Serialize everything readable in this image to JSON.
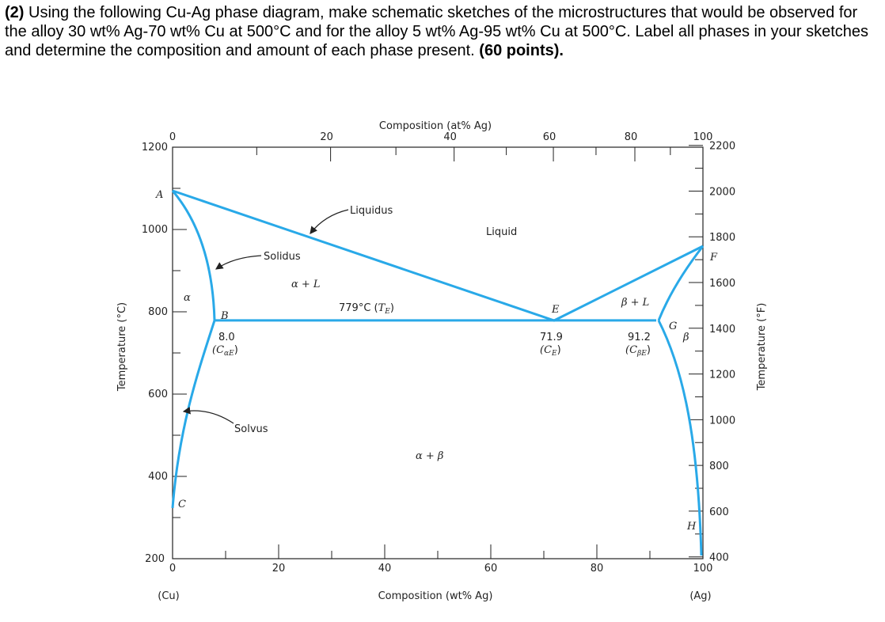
{
  "question": {
    "number": "(2)",
    "text": " Using the following Cu-Ag phase diagram, make schematic sketches of the microstructures that would be observed for the alloy 30 wt% Ag-70 wt% Cu at 500°C and for the alloy 5 wt% Ag-95 wt% Cu at 500°C. Label all phases in your sketches and determine the composition and amount of each phase present. ",
    "points": "(60 points)."
  },
  "diagram": {
    "top_axis": {
      "title": "Composition (at% Ag)",
      "ticks": [
        0,
        20,
        40,
        60,
        80,
        100
      ]
    },
    "bottom_axis": {
      "title": "Composition (wt% Ag)",
      "ticks": [
        0,
        20,
        40,
        60,
        80,
        100
      ],
      "left_end": "(Cu)",
      "right_end": "(Ag)"
    },
    "left_axis": {
      "title": "Temperature (°C)",
      "ticks": [
        200,
        400,
        600,
        800,
        1000,
        1200
      ]
    },
    "right_axis": {
      "title": "Temperature (°F)",
      "ticks": [
        400,
        600,
        800,
        1000,
        1200,
        1400,
        1600,
        1800,
        2000,
        2200
      ]
    },
    "eutectic": {
      "temperature": 779,
      "temperature_label": [
        "779°C (",
        "T",
        "E",
        ")"
      ]
    },
    "c_alpha_e": {
      "value": 8.0,
      "label": "8.0",
      "symbol": [
        "(C",
        "αE",
        ")"
      ]
    },
    "c_e": {
      "value": 71.9,
      "label": "71.9",
      "symbol": [
        "(C",
        "E",
        ")"
      ]
    },
    "c_beta_e": {
      "value": 91.2,
      "label": "91.2",
      "symbol": [
        "(C",
        "βE",
        ")"
      ]
    },
    "regions": {
      "liquid": "Liquid",
      "alpha": "α",
      "alpha_l": "α + L",
      "beta_l": "β + L",
      "beta": "β",
      "alpha_beta": "α + β"
    },
    "curves": {
      "liquidus": "Liquidus",
      "solidus": "Solidus",
      "solvus": "Solvus"
    },
    "points": {
      "a": "A",
      "b": "B",
      "c": "C",
      "e": "E",
      "f": "F",
      "g": "G",
      "h": "H"
    }
  }
}
